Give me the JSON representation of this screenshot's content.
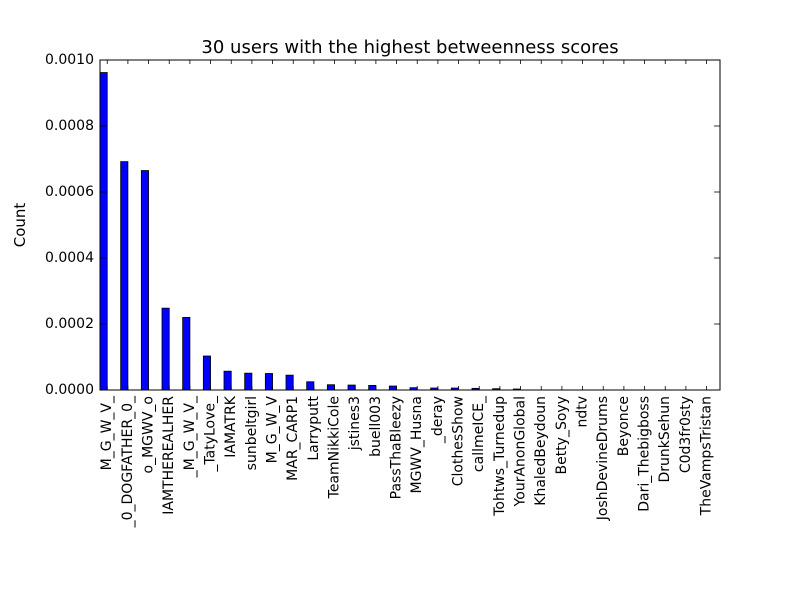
{
  "chart_data": {
    "type": "bar",
    "title": "30 users with the highest betweenness scores",
    "xlabel": "",
    "ylabel": "Count",
    "ylim": [
      0,
      0.001
    ],
    "yticks": [
      "0.0000",
      "0.0002",
      "0.0004",
      "0.0006",
      "0.0008",
      "0.0010"
    ],
    "grid": false,
    "bar_color": "#0000ff",
    "categories": [
      "M_G_W_V_",
      "_0_DOGFATHER_0_",
      "o_MGWV_o",
      "IAMTHEREALHER",
      "_M_G_W_V_",
      "_TatyLove_",
      "IAMATRK",
      "sunbeltgirl",
      "M_G_W_V",
      "MAR_CARP1",
      "Larryputt",
      "TeamNikkiCole",
      "jstines3",
      "buell003",
      "PassThaBleezy",
      "MGWV_Husna",
      "_deray",
      "ClothesShow",
      "callmeICE_",
      "Tohtws_Turnedup",
      "YourAnonGlobal",
      "KhaledBeydoun",
      "Betty_Soyy",
      "ndtv",
      "JoshDevineDrums",
      "Beyonce",
      "Dari_Thebigboss",
      "DrunkSehun",
      "C0d3fr0sty",
      "TheVampsTristan"
    ],
    "values": [
      0.000962,
      0.000692,
      0.000665,
      0.000248,
      0.00022,
      0.000103,
      5.7e-05,
      5.1e-05,
      5e-05,
      4.5e-05,
      2.5e-05,
      1.6e-05,
      1.5e-05,
      1.4e-05,
      1.2e-05,
      7e-06,
      6e-06,
      6e-06,
      5e-06,
      4e-06,
      3e-06,
      8e-07,
      6e-07,
      5e-07,
      4e-07,
      3e-07,
      3e-07,
      2e-07,
      2e-07,
      1e-07
    ]
  }
}
